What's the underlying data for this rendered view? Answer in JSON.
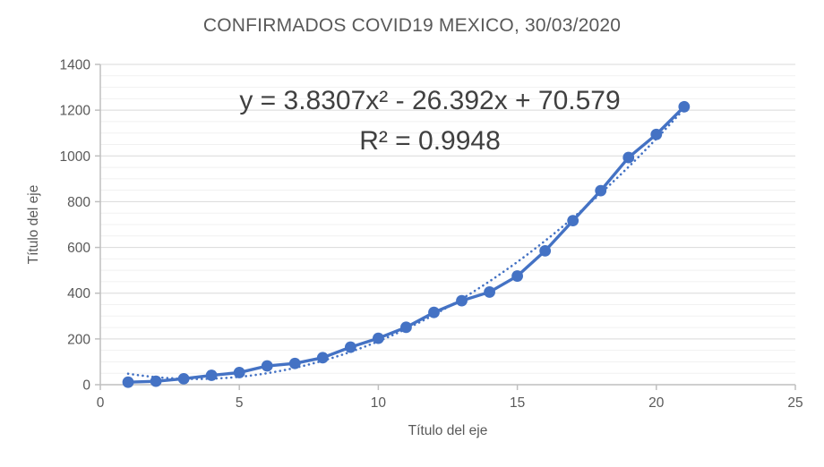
{
  "chart_data": {
    "type": "line",
    "title": "CONFIRMADOS COVID19 MEXICO, 30/03/2020",
    "xlabel": "Título del eje",
    "ylabel": "Título del eje",
    "x": [
      1,
      2,
      3,
      4,
      5,
      6,
      7,
      8,
      9,
      10,
      11,
      12,
      13,
      14,
      15,
      16,
      17,
      18,
      19,
      20,
      21
    ],
    "series": [
      {
        "name": "Confirmados",
        "values": [
          11,
          15,
          26,
          41,
          53,
          82,
          93,
          118,
          164,
          203,
          251,
          316,
          367,
          405,
          475,
          585,
          717,
          848,
          993,
          1094,
          1215
        ]
      }
    ],
    "trendline": {
      "type": "polynomial",
      "order": 2,
      "a": 3.8307,
      "b": -26.392,
      "c": 70.579,
      "equation": "y = 3.8307x² - 26.392x + 70.579",
      "r_squared": "R² = 0.9948",
      "x_start": 1,
      "x_end": 21
    },
    "xlim": [
      0,
      25
    ],
    "ylim": [
      0,
      1400
    ],
    "x_ticks": [
      0,
      5,
      10,
      15,
      20,
      25
    ],
    "y_ticks": [
      0,
      200,
      400,
      600,
      800,
      1000,
      1200,
      1400
    ],
    "y_minor_unit": 50,
    "grid": true,
    "legend": "none",
    "marker": "circle",
    "colors": {
      "series": "#4472C4",
      "text": "#595959",
      "equation_text": "#404040",
      "major_grid": "#D9D9D9",
      "minor_grid": "#F1F1F1",
      "axis": "#BFBFBF"
    }
  }
}
